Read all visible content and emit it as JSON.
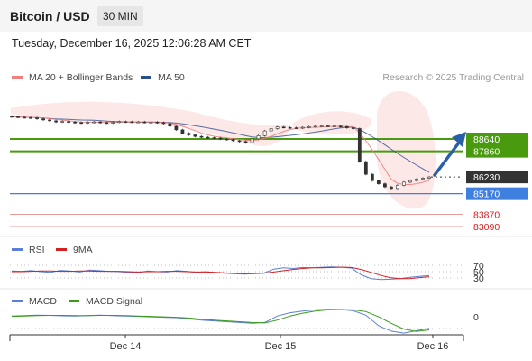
{
  "header": {
    "symbol": "Bitcoin / USD",
    "timeframe": "30 MIN"
  },
  "timestamp": "Tuesday, December 16, 2025 12:06:28 AM CET",
  "legend_main": [
    {
      "label": "MA 20 + Bollinger Bands",
      "color": "#f08080"
    },
    {
      "label": "MA 50",
      "color": "#2a4d8f"
    }
  ],
  "credit": "Research © 2025 Trading Central",
  "legend_rsi": [
    {
      "label": "RSI",
      "color": "#5b7fd6"
    },
    {
      "label": "9MA",
      "color": "#d62020"
    }
  ],
  "legend_macd": [
    {
      "label": "MACD",
      "color": "#5b7fd6"
    },
    {
      "label": "MACD Signal",
      "color": "#3a9a1a"
    }
  ],
  "colors": {
    "resistance": "#4a9a10",
    "support": "#3f7fe0",
    "minor": "#e07a7a",
    "current": "#333333",
    "arrow": "#2a5ea8",
    "candle": "#333333"
  },
  "chart_data": {
    "type": "candlestick",
    "x_tick_labels": [
      "Dec 14",
      "Dec 15",
      "Dec 16"
    ],
    "price_levels": [
      {
        "label": "88640",
        "value": 88640,
        "kind": "resistance"
      },
      {
        "label": "87860",
        "value": 87860,
        "kind": "resistance"
      },
      {
        "label": "86230",
        "value": 86230,
        "kind": "current"
      },
      {
        "label": "85170",
        "value": 85170,
        "kind": "support"
      },
      {
        "label": "83870",
        "value": 83870,
        "kind": "minor"
      },
      {
        "label": "83090",
        "value": 83090,
        "kind": "minor"
      }
    ],
    "close": [
      90050,
      90020,
      90000,
      89980,
      89920,
      89850,
      89790,
      89720,
      89750,
      89710,
      89680,
      89660,
      89700,
      89720,
      89680,
      89650,
      89700,
      89740,
      89730,
      89720,
      89720,
      89700,
      89710,
      89680,
      89620,
      89450,
      89220,
      89000,
      88900,
      88800,
      88750,
      88720,
      88700,
      88640,
      88600,
      88530,
      88480,
      88400,
      88650,
      88850,
      89150,
      89300,
      89400,
      89370,
      89350,
      89330,
      89380,
      89420,
      89450,
      89470,
      89460,
      89460,
      89420,
      89350,
      89300,
      87200,
      86400,
      86000,
      85800,
      85600,
      85500,
      85700,
      85900,
      86000,
      86100,
      86150,
      86230
    ],
    "rsi_levels": [
      70,
      50,
      30
    ],
    "rsi": [
      52,
      51,
      53,
      50,
      48,
      54,
      52,
      49,
      55,
      53,
      51,
      50,
      48,
      47,
      52,
      50,
      49,
      53,
      51,
      48,
      50,
      47,
      45,
      43,
      42,
      44,
      46,
      58,
      62,
      60,
      63,
      62,
      64,
      65,
      64,
      61,
      40,
      28,
      25,
      26,
      28,
      32,
      35,
      38
    ],
    "rsi_ma": [
      50,
      50,
      51,
      52,
      52,
      51,
      51,
      52,
      52,
      51,
      51,
      51,
      50,
      49,
      50,
      50,
      51,
      51,
      50,
      49,
      49,
      48,
      46,
      45,
      44,
      44,
      45,
      49,
      53,
      57,
      60,
      62,
      62,
      63,
      64,
      63,
      57,
      48,
      38,
      31,
      28,
      28,
      31,
      34
    ],
    "macd_zero_label": "0",
    "macd": [
      40,
      50,
      60,
      55,
      45,
      40,
      50,
      60,
      50,
      40,
      30,
      20,
      10,
      0,
      -30,
      -60,
      -80,
      -100,
      -120,
      -140,
      -120,
      40,
      120,
      160,
      190,
      210,
      200,
      170,
      60,
      -200,
      -330,
      -380,
      -320,
      -260
    ],
    "macd_signal": [
      30,
      40,
      50,
      55,
      55,
      50,
      50,
      55,
      55,
      50,
      40,
      30,
      20,
      10,
      -10,
      -40,
      -60,
      -80,
      -100,
      -120,
      -130,
      -60,
      40,
      110,
      160,
      190,
      200,
      190,
      150,
      20,
      -140,
      -280,
      -340,
      -300
    ]
  }
}
